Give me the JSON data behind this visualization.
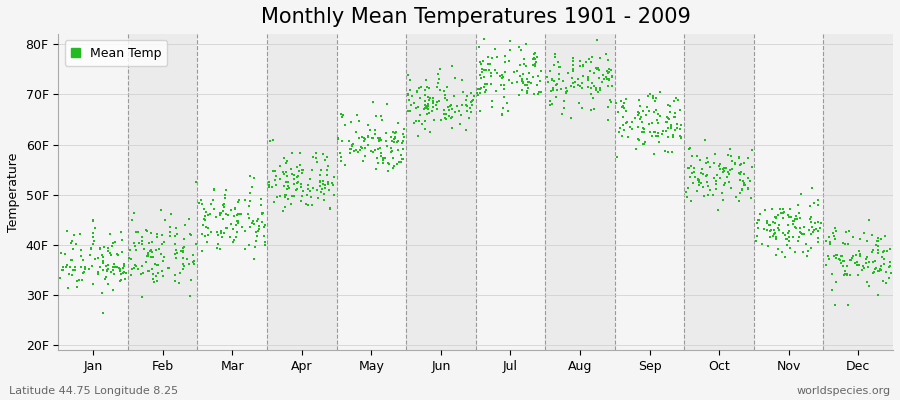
{
  "title": "Monthly Mean Temperatures 1901 - 2009",
  "ylabel": "Temperature",
  "yticks": [
    20,
    30,
    40,
    50,
    60,
    70,
    80
  ],
  "ytick_labels": [
    "20F",
    "30F",
    "40F",
    "50F",
    "60F",
    "70F",
    "80F"
  ],
  "ylim": [
    19,
    82
  ],
  "months": [
    "Jan",
    "Feb",
    "Mar",
    "Apr",
    "May",
    "Jun",
    "Jul",
    "Aug",
    "Sep",
    "Oct",
    "Nov",
    "Dec"
  ],
  "month_tick_offsets": [
    0.5,
    1.5,
    2.5,
    3.5,
    4.5,
    5.5,
    6.5,
    7.5,
    8.5,
    9.5,
    10.5,
    11.5
  ],
  "dot_color": "#22bb22",
  "legend_label": "Mean Temp",
  "bottom_left": "Latitude 44.75 Longitude 8.25",
  "bottom_right": "worldspecies.org",
  "bg_color": "#f5f5f5",
  "plot_bg_color_light": "#f5f5f5",
  "plot_bg_color_dark": "#ebebeb",
  "n_years": 109,
  "mean_temps_F": [
    36.5,
    38.0,
    44.5,
    52.5,
    60.5,
    68.5,
    73.5,
    72.5,
    64.5,
    53.5,
    43.5,
    37.5
  ],
  "std_temps_F": [
    3.2,
    3.5,
    3.5,
    3.0,
    3.0,
    3.0,
    2.8,
    2.8,
    2.8,
    3.0,
    3.0,
    3.2
  ],
  "title_fontsize": 15,
  "label_fontsize": 9,
  "tick_fontsize": 9,
  "dot_size": 3,
  "grid_color": "#cccccc",
  "dashed_line_color": "#999999"
}
